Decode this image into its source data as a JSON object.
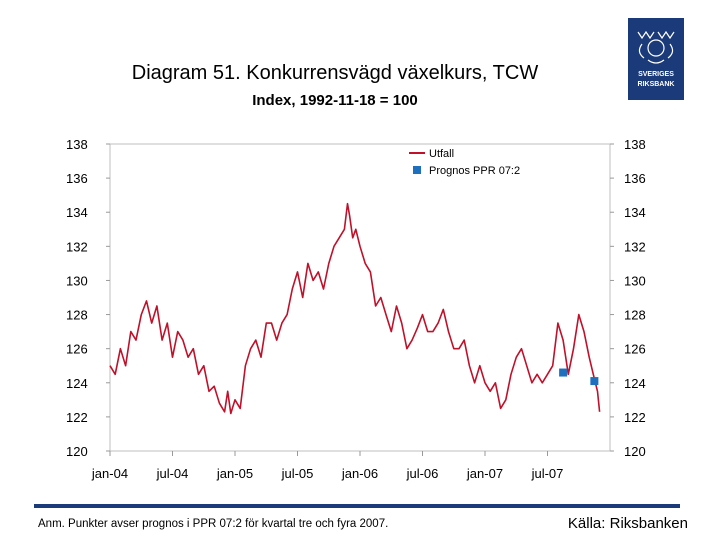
{
  "slide": {
    "title": "Diagram 51. Konkurrensvägd växelkurs, TCW",
    "subtitle": "Index, 1992-11-18 = 100",
    "footnote": "Anm. Punkter avser prognos i PPR 07:2 för kvartal tre och fyra 2007.",
    "source": "Källa: Riksbanken",
    "logo_text": "SVERIGES RIKSBANK"
  },
  "colors": {
    "line": "#c0102a",
    "forecast": "#1f6fbf",
    "brand": "#1a3a7a"
  },
  "chart_data": {
    "type": "line",
    "title": "Diagram 51. Konkurrensvägd växelkurs, TCW",
    "ylabel": "Index, 1992-11-18 = 100",
    "ylim": [
      120,
      138
    ],
    "yticks": [
      138,
      136,
      134,
      132,
      130,
      128,
      126,
      124,
      122,
      120
    ],
    "xlim": [
      0,
      48
    ],
    "xticks": [
      {
        "label": "jan-04",
        "x": 0
      },
      {
        "label": "jul-04",
        "x": 6
      },
      {
        "label": "jan-05",
        "x": 12
      },
      {
        "label": "jul-05",
        "x": 18
      },
      {
        "label": "jan-06",
        "x": 24
      },
      {
        "label": "jul-06",
        "x": 30
      },
      {
        "label": "jan-07",
        "x": 36
      },
      {
        "label": "jul-07",
        "x": 42
      }
    ],
    "legend": [
      "Utfall",
      "Prognos PPR 07:2"
    ],
    "series": [
      {
        "name": "Utfall",
        "x": [
          0,
          0.5,
          1.0,
          1.5,
          2.0,
          2.5,
          3.0,
          3.5,
          4.0,
          4.5,
          5.0,
          5.5,
          6.0,
          6.5,
          7.0,
          7.5,
          8.0,
          8.5,
          9.0,
          9.5,
          10.0,
          10.5,
          11.0,
          11.3,
          11.6,
          12.0,
          12.5,
          13.0,
          13.5,
          14.0,
          14.5,
          15.0,
          15.5,
          16.0,
          16.5,
          17.0,
          17.5,
          18.0,
          18.5,
          19.0,
          19.5,
          20.0,
          20.5,
          21.0,
          21.5,
          22.0,
          22.5,
          22.8,
          23.0,
          23.3,
          23.6,
          24.0,
          24.5,
          25.0,
          25.5,
          26.0,
          26.5,
          27.0,
          27.5,
          28.0,
          28.5,
          29.0,
          29.5,
          30.0,
          30.5,
          31.0,
          31.5,
          32.0,
          32.5,
          33.0,
          33.5,
          34.0,
          34.5,
          35.0,
          35.5,
          36.0,
          36.5,
          37.0,
          37.5,
          38.0,
          38.5,
          39.0,
          39.5,
          40.0,
          40.5,
          41.0,
          41.5,
          42.0,
          42.5,
          43.0,
          43.5,
          44.0,
          44.5,
          45.0,
          45.5,
          46.0,
          46.4,
          46.8,
          47.0
        ],
        "values": [
          125.0,
          124.5,
          126.0,
          125.0,
          127.0,
          126.5,
          128.0,
          128.8,
          127.5,
          128.5,
          126.5,
          127.5,
          125.5,
          127.0,
          126.5,
          125.5,
          126.0,
          124.5,
          125.0,
          123.5,
          123.8,
          122.8,
          122.3,
          123.5,
          122.2,
          123.0,
          122.5,
          125.0,
          126.0,
          126.5,
          125.5,
          127.5,
          127.5,
          126.5,
          127.5,
          128.0,
          129.5,
          130.5,
          129.0,
          131.0,
          130.0,
          130.5,
          129.5,
          131.0,
          132.0,
          132.5,
          133.0,
          134.5,
          133.8,
          132.5,
          133.0,
          132.0,
          131.0,
          130.5,
          128.5,
          129.0,
          128.0,
          127.0,
          128.5,
          127.5,
          126.0,
          126.5,
          127.2,
          128.0,
          127.0,
          127.0,
          127.5,
          128.3,
          127.0,
          126.0,
          126.0,
          126.5,
          125.0,
          124.0,
          125.0,
          124.0,
          123.5,
          124.0,
          122.5,
          123.0,
          124.5,
          125.5,
          126.0,
          125.0,
          124.0,
          124.5,
          124.0,
          124.5,
          125.0,
          127.5,
          126.5,
          124.5,
          126.0,
          128.0,
          127.0,
          125.5,
          124.5,
          123.5,
          122.3
        ]
      },
      {
        "name": "Prognos PPR 07:2",
        "marker": "square",
        "x": [
          43.5,
          46.5
        ],
        "values": [
          124.6,
          124.1
        ]
      }
    ]
  }
}
